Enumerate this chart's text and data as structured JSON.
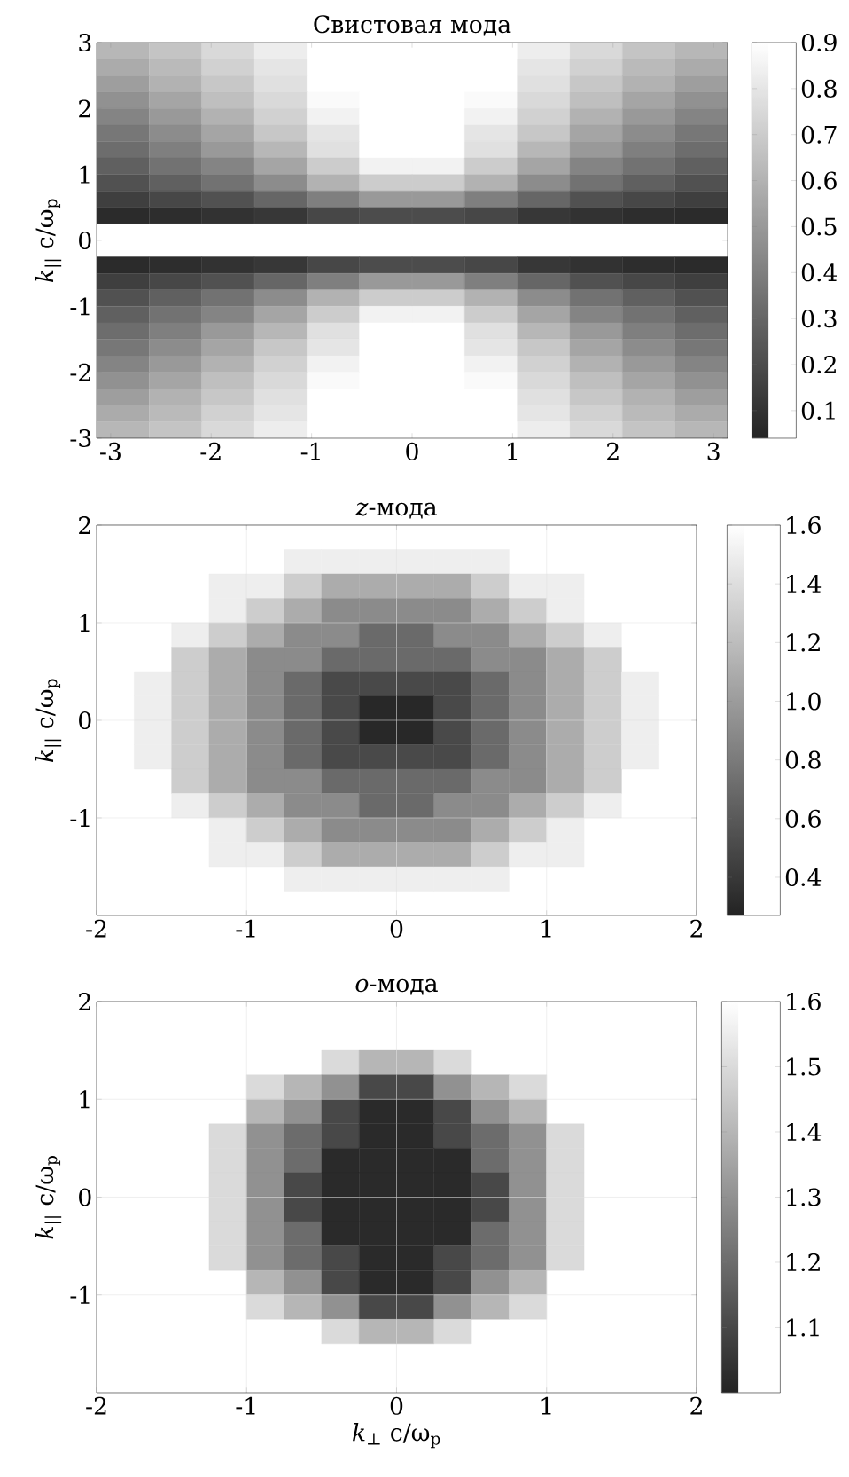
{
  "chart_data": [
    {
      "type": "heatmap",
      "title": "Свистовая мода",
      "ylabel": "*k*$_{||}$ c/ω$_{p}$",
      "x": [
        -2.878,
        -2.355,
        -1.832,
        -1.308,
        -0.785,
        -0.262,
        0.262,
        0.785,
        1.308,
        1.832,
        2.355,
        2.878
      ],
      "y": [
        2.875,
        2.625,
        2.375,
        2.125,
        1.875,
        1.625,
        1.375,
        1.125,
        0.875,
        0.625,
        0.375,
        0.125,
        -0.125,
        -0.375,
        -0.625,
        -0.875,
        -1.125,
        -1.375,
        -1.625,
        -1.875,
        -2.125,
        -2.375,
        -2.625,
        -2.875
      ],
      "cells": [
        [
          0.62,
          0.67,
          0.75,
          0.83,
          0.9,
          0.9,
          0.9,
          0.9,
          0.83,
          0.75,
          0.67,
          0.62
        ],
        [
          0.57,
          0.63,
          0.72,
          0.8,
          0.9,
          0.9,
          0.9,
          0.9,
          0.8,
          0.72,
          0.63,
          0.57
        ],
        [
          0.52,
          0.6,
          0.68,
          0.78,
          0.9,
          0.9,
          0.9,
          0.9,
          0.78,
          0.68,
          0.6,
          0.52
        ],
        [
          0.47,
          0.55,
          0.65,
          0.75,
          0.88,
          0.9,
          0.9,
          0.88,
          0.75,
          0.65,
          0.55,
          0.47
        ],
        [
          0.42,
          0.5,
          0.6,
          0.72,
          0.85,
          0.9,
          0.9,
          0.85,
          0.72,
          0.6,
          0.5,
          0.42
        ],
        [
          0.37,
          0.45,
          0.55,
          0.68,
          0.8,
          0.9,
          0.9,
          0.8,
          0.68,
          0.55,
          0.45,
          0.37
        ],
        [
          0.33,
          0.4,
          0.5,
          0.62,
          0.78,
          0.9,
          0.9,
          0.78,
          0.62,
          0.5,
          0.4,
          0.33
        ],
        [
          0.28,
          0.35,
          0.42,
          0.55,
          0.7,
          0.85,
          0.85,
          0.7,
          0.55,
          0.42,
          0.35,
          0.28
        ],
        [
          0.22,
          0.28,
          0.35,
          0.45,
          0.6,
          0.7,
          0.7,
          0.6,
          0.45,
          0.35,
          0.28,
          0.22
        ],
        [
          0.15,
          0.18,
          0.22,
          0.3,
          0.4,
          0.5,
          0.5,
          0.4,
          0.3,
          0.22,
          0.18,
          0.15
        ],
        [
          0.07,
          0.08,
          0.1,
          0.12,
          0.18,
          0.2,
          0.2,
          0.18,
          0.12,
          0.1,
          0.08,
          0.07
        ],
        [
          0.9,
          0.9,
          0.9,
          0.9,
          0.9,
          0.9,
          0.9,
          0.9,
          0.9,
          0.9,
          0.9,
          0.9
        ],
        [
          0.9,
          0.9,
          0.9,
          0.9,
          0.9,
          0.9,
          0.9,
          0.9,
          0.9,
          0.9,
          0.9,
          0.9
        ],
        [
          0.07,
          0.08,
          0.1,
          0.12,
          0.18,
          0.2,
          0.2,
          0.18,
          0.12,
          0.1,
          0.08,
          0.07
        ],
        [
          0.15,
          0.18,
          0.22,
          0.3,
          0.4,
          0.5,
          0.5,
          0.4,
          0.3,
          0.22,
          0.18,
          0.15
        ],
        [
          0.22,
          0.28,
          0.35,
          0.45,
          0.6,
          0.7,
          0.7,
          0.6,
          0.45,
          0.35,
          0.28,
          0.22
        ],
        [
          0.28,
          0.35,
          0.42,
          0.55,
          0.7,
          0.85,
          0.85,
          0.7,
          0.55,
          0.42,
          0.35,
          0.28
        ],
        [
          0.33,
          0.4,
          0.5,
          0.62,
          0.78,
          0.9,
          0.9,
          0.78,
          0.62,
          0.5,
          0.4,
          0.33
        ],
        [
          0.37,
          0.45,
          0.55,
          0.68,
          0.8,
          0.9,
          0.9,
          0.8,
          0.68,
          0.55,
          0.45,
          0.37
        ],
        [
          0.42,
          0.5,
          0.6,
          0.72,
          0.85,
          0.9,
          0.9,
          0.85,
          0.72,
          0.6,
          0.5,
          0.42
        ],
        [
          0.47,
          0.55,
          0.65,
          0.75,
          0.88,
          0.9,
          0.9,
          0.88,
          0.75,
          0.65,
          0.55,
          0.47
        ],
        [
          0.52,
          0.6,
          0.68,
          0.78,
          0.9,
          0.9,
          0.9,
          0.9,
          0.78,
          0.68,
          0.6,
          0.52
        ],
        [
          0.57,
          0.63,
          0.72,
          0.8,
          0.9,
          0.9,
          0.9,
          0.9,
          0.8,
          0.72,
          0.63,
          0.57
        ],
        [
          0.62,
          0.67,
          0.75,
          0.83,
          0.9,
          0.9,
          0.9,
          0.9,
          0.83,
          0.75,
          0.67,
          0.62
        ]
      ],
      "clim": [
        0.04,
        0.9
      ],
      "cticks": [
        0.1,
        0.2,
        0.3,
        0.4,
        0.5,
        0.6,
        0.7,
        0.8,
        0.9
      ],
      "xlim": [
        -3.14,
        3.14
      ],
      "ylim": [
        -3,
        3
      ],
      "xticks": [
        -3,
        -2,
        -1,
        0,
        1,
        2,
        3
      ],
      "yticks": [
        -3,
        -2,
        -1,
        0,
        1,
        2,
        3
      ]
    },
    {
      "type": "heatmap",
      "title": "*z*-мода",
      "ylabel": "*k*$_{||}$ c/ω$_{p}$",
      "x": [
        -1.625,
        -1.375,
        -1.125,
        -0.875,
        -0.625,
        -0.375,
        -0.125,
        0.125,
        0.375,
        0.625,
        0.875,
        1.125,
        1.375,
        1.625
      ],
      "y": [
        1.625,
        1.375,
        1.125,
        0.875,
        0.625,
        0.375,
        0.125,
        -0.125,
        -0.375,
        -0.625,
        -0.875,
        -1.125,
        -1.375,
        -1.625
      ],
      "cells": [
        [
          null,
          null,
          null,
          null,
          1.5,
          1.5,
          1.5,
          1.5,
          1.5,
          1.5,
          null,
          null,
          null,
          null
        ],
        [
          null,
          null,
          1.5,
          1.5,
          1.3,
          1.1,
          1.1,
          1.1,
          1.1,
          1.3,
          1.5,
          1.5,
          null,
          null
        ],
        [
          null,
          null,
          1.5,
          1.3,
          1.1,
          0.9,
          0.9,
          0.9,
          0.9,
          1.1,
          1.3,
          1.5,
          null,
          null
        ],
        [
          null,
          1.5,
          1.3,
          1.1,
          0.9,
          0.9,
          0.7,
          0.7,
          0.9,
          0.9,
          1.1,
          1.3,
          1.5,
          null
        ],
        [
          null,
          1.3,
          1.1,
          0.9,
          0.9,
          0.7,
          0.7,
          0.7,
          0.7,
          0.9,
          0.9,
          1.1,
          1.3,
          null
        ],
        [
          1.5,
          1.3,
          1.1,
          0.9,
          0.7,
          0.5,
          0.5,
          0.5,
          0.5,
          0.7,
          0.9,
          1.1,
          1.3,
          1.5
        ],
        [
          1.5,
          1.3,
          1.1,
          0.9,
          0.7,
          0.5,
          0.3,
          0.3,
          0.5,
          0.7,
          0.9,
          1.1,
          1.3,
          1.5
        ],
        [
          1.5,
          1.3,
          1.1,
          0.9,
          0.7,
          0.5,
          0.3,
          0.3,
          0.5,
          0.7,
          0.9,
          1.1,
          1.3,
          1.5
        ],
        [
          1.5,
          1.3,
          1.1,
          0.9,
          0.7,
          0.5,
          0.5,
          0.5,
          0.5,
          0.7,
          0.9,
          1.1,
          1.3,
          1.5
        ],
        [
          null,
          1.3,
          1.1,
          0.9,
          0.9,
          0.7,
          0.7,
          0.7,
          0.7,
          0.9,
          0.9,
          1.1,
          1.3,
          null
        ],
        [
          null,
          1.5,
          1.3,
          1.1,
          0.9,
          0.9,
          0.7,
          0.7,
          0.9,
          0.9,
          1.1,
          1.3,
          1.5,
          null
        ],
        [
          null,
          null,
          1.5,
          1.3,
          1.1,
          0.9,
          0.9,
          0.9,
          0.9,
          1.1,
          1.3,
          1.5,
          null,
          null
        ],
        [
          null,
          null,
          1.5,
          1.5,
          1.3,
          1.1,
          1.1,
          1.1,
          1.1,
          1.3,
          1.5,
          1.5,
          null,
          null
        ],
        [
          null,
          null,
          null,
          null,
          1.5,
          1.5,
          1.5,
          1.5,
          1.5,
          1.5,
          null,
          null,
          null,
          null
        ]
      ],
      "clim": [
        0.27,
        1.6
      ],
      "cticks": [
        0.4,
        0.6,
        0.8,
        {
          "value": 1.0,
          "label": "1.0"
        },
        1.2,
        1.4,
        1.6
      ],
      "xlim": [
        -2,
        2
      ],
      "ylim": [
        -2,
        2
      ],
      "xticks": [
        -2,
        -1,
        0,
        1,
        2
      ],
      "yticks": [
        -1,
        0,
        1,
        2
      ],
      "grid": true
    },
    {
      "type": "heatmap",
      "title": "*o*-мода",
      "ylabel": "*k*$_{||}$ c/ω$_{p}$",
      "xlabel": "*k*$_{⊥}$ c/ω$_{p}$",
      "x": [
        -1.125,
        -0.875,
        -0.625,
        -0.375,
        -0.125,
        0.125,
        0.375,
        0.625,
        0.875,
        1.125
      ],
      "y": [
        1.375,
        1.125,
        0.875,
        0.625,
        0.375,
        0.125,
        -0.125,
        -0.375,
        -0.625,
        -0.875,
        -1.125,
        -1.375
      ],
      "cells": [
        [
          null,
          null,
          null,
          1.5,
          1.4,
          1.4,
          1.5,
          null,
          null,
          null
        ],
        [
          null,
          1.5,
          1.4,
          1.3,
          1.1,
          1.1,
          1.3,
          1.4,
          1.5,
          null
        ],
        [
          null,
          1.4,
          1.3,
          1.1,
          1.02,
          1.02,
          1.1,
          1.3,
          1.4,
          null
        ],
        [
          1.5,
          1.3,
          1.2,
          1.1,
          1.02,
          1.02,
          1.1,
          1.2,
          1.3,
          1.5
        ],
        [
          1.5,
          1.3,
          1.2,
          1.02,
          1.02,
          1.02,
          1.02,
          1.2,
          1.3,
          1.5
        ],
        [
          1.5,
          1.3,
          1.1,
          1.02,
          1.02,
          1.02,
          1.02,
          1.1,
          1.3,
          1.5
        ],
        [
          1.5,
          1.3,
          1.1,
          1.02,
          1.02,
          1.02,
          1.02,
          1.1,
          1.3,
          1.5
        ],
        [
          1.5,
          1.3,
          1.2,
          1.02,
          1.02,
          1.02,
          1.02,
          1.2,
          1.3,
          1.5
        ],
        [
          1.5,
          1.3,
          1.2,
          1.1,
          1.02,
          1.02,
          1.1,
          1.2,
          1.3,
          1.5
        ],
        [
          null,
          1.4,
          1.3,
          1.1,
          1.02,
          1.02,
          1.1,
          1.3,
          1.4,
          null
        ],
        [
          null,
          1.5,
          1.4,
          1.3,
          1.1,
          1.1,
          1.3,
          1.4,
          1.5,
          null
        ],
        [
          null,
          null,
          null,
          1.5,
          1.4,
          1.4,
          1.5,
          null,
          null,
          null
        ]
      ],
      "clim": [
        1.0,
        1.6
      ],
      "cticks": [
        1.1,
        1.2,
        1.3,
        1.4,
        1.5,
        1.6
      ],
      "xlim": [
        -2,
        2
      ],
      "ylim": [
        -2,
        2
      ],
      "xticks": [
        -2,
        -1,
        0,
        1,
        2
      ],
      "yticks": [
        -1,
        0,
        1,
        2
      ],
      "grid": true
    }
  ]
}
